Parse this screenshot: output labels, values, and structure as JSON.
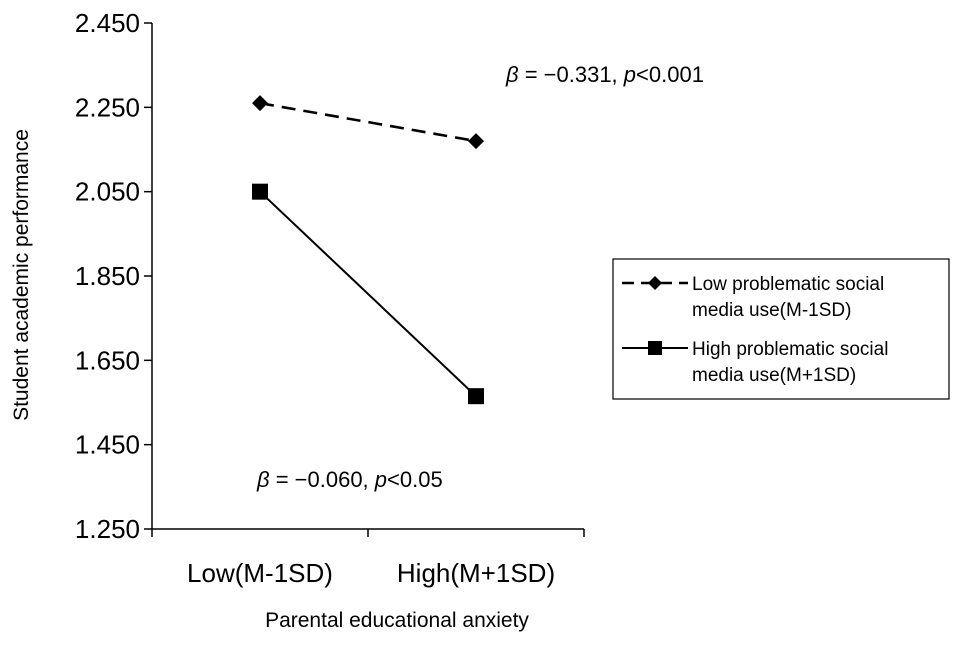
{
  "chart_data": {
    "type": "line",
    "title": "",
    "xlabel": "Parental educational anxiety",
    "ylabel": "Student academic performance",
    "categories": [
      "Low(M-1SD)",
      "High(M+1SD)"
    ],
    "ylim": [
      1.25,
      2.45
    ],
    "yticks": [
      "2.450",
      "2.250",
      "2.050",
      "1.850",
      "1.650",
      "1.450",
      "1.250"
    ],
    "ytick_values": [
      2.45,
      2.25,
      2.05,
      1.85,
      1.65,
      1.45,
      1.25
    ],
    "grid": false,
    "legend_position": "right",
    "series": [
      {
        "name": "Low problematic social media use(M-1SD)",
        "name_lines": [
          "Low problematic social",
          "media use(M-1SD)"
        ],
        "values": [
          2.26,
          2.17
        ],
        "marker": "diamond",
        "line_style": "dashed",
        "color": "#000000"
      },
      {
        "name": "High problematic social media use(M+1SD)",
        "name_lines": [
          "High problematic social",
          "media use(M+1SD)"
        ],
        "values": [
          2.05,
          1.565
        ],
        "marker": "square",
        "line_style": "solid",
        "color": "#000000"
      }
    ],
    "annotations": [
      {
        "beta_symbol": "β",
        "beta_text": " = −0.331, ",
        "p_symbol": "p",
        "p_text": "<0.001",
        "series": 0
      },
      {
        "beta_symbol": "β",
        "beta_text": " = −0.060, ",
        "p_symbol": "p",
        "p_text": "<0.05",
        "series": 1
      }
    ]
  }
}
